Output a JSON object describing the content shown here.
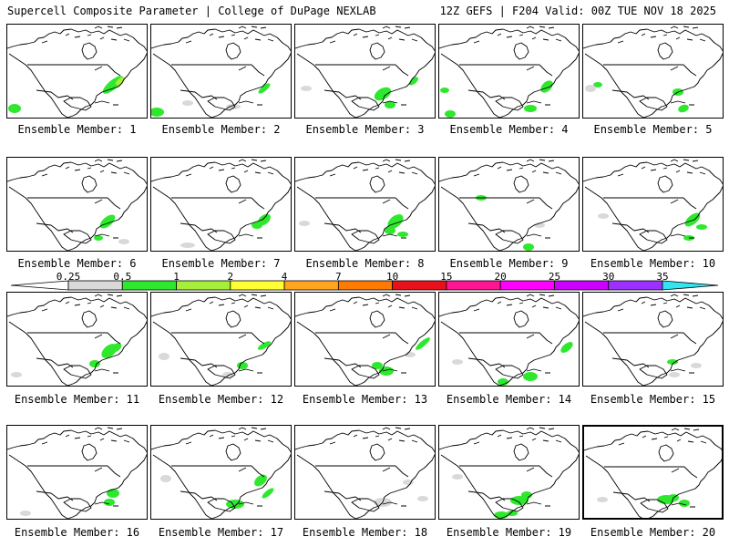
{
  "header": {
    "left": "Supercell Composite Parameter | College of DuPage NEXLAB",
    "right": "12Z GEFS | F204 Valid: 00Z TUE NOV 18 2025"
  },
  "legend": {
    "levels": [
      "0.25",
      "0.5",
      "1",
      "2",
      "4",
      "7",
      "10",
      "15",
      "20",
      "25",
      "30",
      "35"
    ],
    "colors": [
      "#d9d9d9",
      "#2ee82e",
      "#a6ef38",
      "#ffff33",
      "#ffa51f",
      "#ff7a00",
      "#e8101b",
      "#ff1493",
      "#ff00ff",
      "#cc00ff",
      "#9b30ff",
      "#b48cff",
      "#33e5f0"
    ],
    "below_min_color": "#ffffff"
  },
  "members": [
    {
      "label": "Ensemble Member: 1"
    },
    {
      "label": "Ensemble Member: 2"
    },
    {
      "label": "Ensemble Member: 3"
    },
    {
      "label": "Ensemble Member: 4"
    },
    {
      "label": "Ensemble Member: 5"
    },
    {
      "label": "Ensemble Member: 6"
    },
    {
      "label": "Ensemble Member: 7"
    },
    {
      "label": "Ensemble Member: 8"
    },
    {
      "label": "Ensemble Member: 9"
    },
    {
      "label": "Ensemble Member: 10"
    },
    {
      "label": "Ensemble Member: 11"
    },
    {
      "label": "Ensemble Member: 12"
    },
    {
      "label": "Ensemble Member: 13"
    },
    {
      "label": "Ensemble Member: 14"
    },
    {
      "label": "Ensemble Member: 15"
    },
    {
      "label": "Ensemble Member: 16"
    },
    {
      "label": "Ensemble Member: 17"
    },
    {
      "label": "Ensemble Member: 18"
    },
    {
      "label": "Ensemble Member: 19"
    },
    {
      "label": "Ensemble Member: 20"
    }
  ]
}
